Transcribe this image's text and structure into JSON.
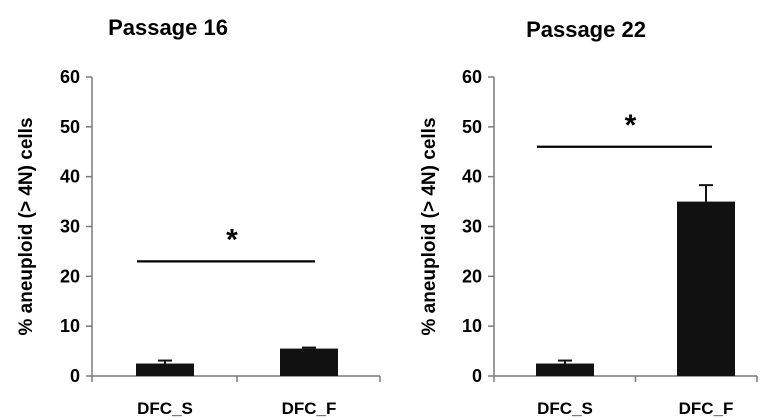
{
  "chart_data": [
    {
      "type": "bar",
      "title": "Passage 16",
      "ylabel": "% aneuploid (> 4N) cells",
      "xlabel": "",
      "categories": [
        "DFC_S",
        "DFC_F"
      ],
      "values": [
        2.5,
        5.5
      ],
      "errors": [
        0.6,
        0.2
      ],
      "ylim": [
        0,
        60
      ],
      "yticks": [
        0,
        10,
        20,
        30,
        40,
        50,
        60
      ],
      "significance": {
        "label": "*",
        "between": [
          "DFC_S",
          "DFC_F"
        ],
        "y": 23
      },
      "bar_color": "#111111",
      "grid": false
    },
    {
      "type": "bar",
      "title": "Passage 22",
      "ylabel": "% aneuploid (> 4N) cells",
      "xlabel": "",
      "categories": [
        "DFC_S",
        "DFC_F"
      ],
      "values": [
        2.5,
        35
      ],
      "errors": [
        0.6,
        3.3
      ],
      "ylim": [
        0,
        60
      ],
      "yticks": [
        0,
        10,
        20,
        30,
        40,
        50,
        60
      ],
      "significance": {
        "label": "*",
        "between": [
          "DFC_S",
          "DFC_F"
        ],
        "y": 46
      },
      "bar_color": "#111111",
      "grid": false
    }
  ]
}
